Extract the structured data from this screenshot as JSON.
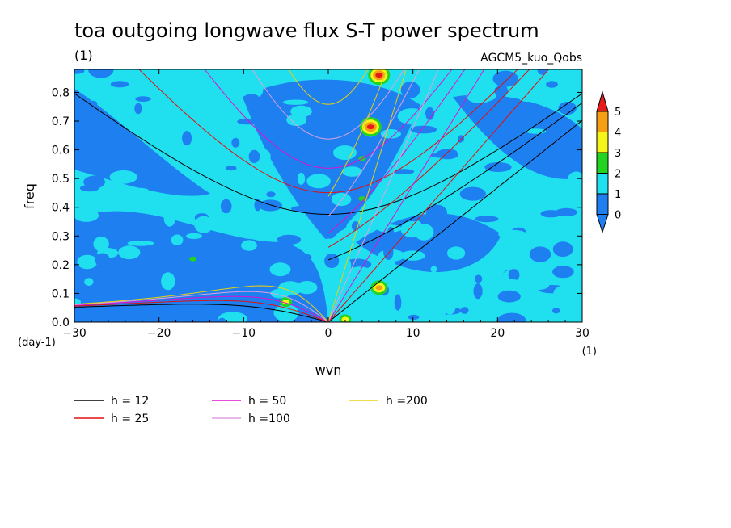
{
  "chart_data": {
    "type": "heatmap",
    "title": "toa outgoing longwave flux S-T power spectrum",
    "subtitle_left": "(1)",
    "subtitle_right": "AGCM5_kuo_Qobs",
    "xlabel": "wvn",
    "ylabel": "freq",
    "x_unit": "(1)",
    "y_unit": "(day-1)",
    "xlim": [
      -30,
      30
    ],
    "ylim": [
      0,
      0.88
    ],
    "xticks": [
      -30,
      -20,
      -10,
      0,
      10,
      20,
      30
    ],
    "yticks": [
      0.0,
      0.1,
      0.2,
      0.3,
      0.4,
      0.5,
      0.6,
      0.7,
      0.8
    ],
    "ytick_labels": [
      "0.0",
      "0.1",
      "0.2",
      "0.3",
      "0.4",
      "0.5",
      "0.6",
      "0.7",
      "0.8"
    ],
    "colorbar": {
      "levels": [
        0,
        1,
        2,
        3,
        4,
        5
      ],
      "colors": [
        "#1e7ff0",
        "#20e0f0",
        "#22d322",
        "#f5f51a",
        "#f5a014",
        "#e81a1a"
      ]
    },
    "dispersion_curves": [
      {
        "name": "h = 12",
        "h": 12,
        "color": "#000000"
      },
      {
        "name": "h = 25",
        "h": 25,
        "color": "#e01010"
      },
      {
        "name": "h = 50",
        "h": 50,
        "color": "#e010d0"
      },
      {
        "name": "h =100",
        "h": 100,
        "color": "#e0a0e0"
      },
      {
        "name": "h =200",
        "h": 200,
        "color": "#e8d010"
      }
    ],
    "peaks": [
      {
        "wvn": 6,
        "freq": 0.86,
        "level": 5
      },
      {
        "wvn": 5,
        "freq": 0.68,
        "level": 5
      },
      {
        "wvn": 6,
        "freq": 0.12,
        "level": 4
      },
      {
        "wvn": -5,
        "freq": 0.07,
        "level": 3
      },
      {
        "wvn": 2,
        "freq": 0.01,
        "level": 3
      },
      {
        "wvn": -16,
        "freq": 0.22,
        "level": 2
      },
      {
        "wvn": 4,
        "freq": 0.43,
        "level": 2
      },
      {
        "wvn": 4,
        "freq": 0.57,
        "level": 2
      }
    ]
  }
}
